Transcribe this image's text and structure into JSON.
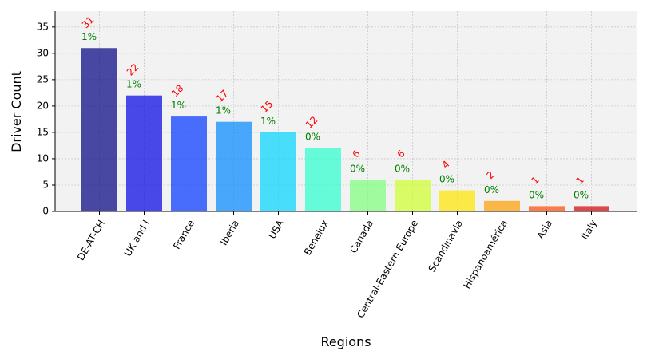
{
  "chart_data": {
    "type": "bar",
    "title": "",
    "xlabel": "Regions",
    "ylabel": "Driver Count",
    "ylim": [
      0,
      38
    ],
    "yticks": [
      0,
      5,
      10,
      15,
      20,
      25,
      30,
      35
    ],
    "grid": true,
    "categories": [
      "DE-AT-CH",
      "UK and I",
      "France",
      "Iberia",
      "USA",
      "Benelux",
      "Canada",
      "Central-Eastern Europe",
      "Scandinavia",
      "Hispanoamérica",
      "Asia",
      "Italy"
    ],
    "values": [
      31,
      22,
      18,
      17,
      15,
      12,
      6,
      6,
      4,
      2,
      1,
      1
    ],
    "count_labels": [
      "31",
      "22",
      "18",
      "17",
      "15",
      "12",
      "6",
      "6",
      "4",
      "2",
      "1",
      "1"
    ],
    "percent_labels": [
      "1%",
      "1%",
      "1%",
      "1%",
      "1%",
      "0%",
      "0%",
      "0%",
      "0%",
      "0%",
      "0%",
      "0%"
    ],
    "bar_colors": [
      "#000080",
      "#0000e6",
      "#0033ff",
      "#0088ff",
      "#00d4ff",
      "#29ffce",
      "#7dff7a",
      "#ceff29",
      "#ffe500",
      "#ff9c00",
      "#ff4a00",
      "#d40000"
    ],
    "bar_alpha": 0.7,
    "count_label_color": "#ff0000",
    "percent_label_color": "#008000",
    "plot_background": "#f2f2f2",
    "grid_color": "#c8c8c8"
  }
}
